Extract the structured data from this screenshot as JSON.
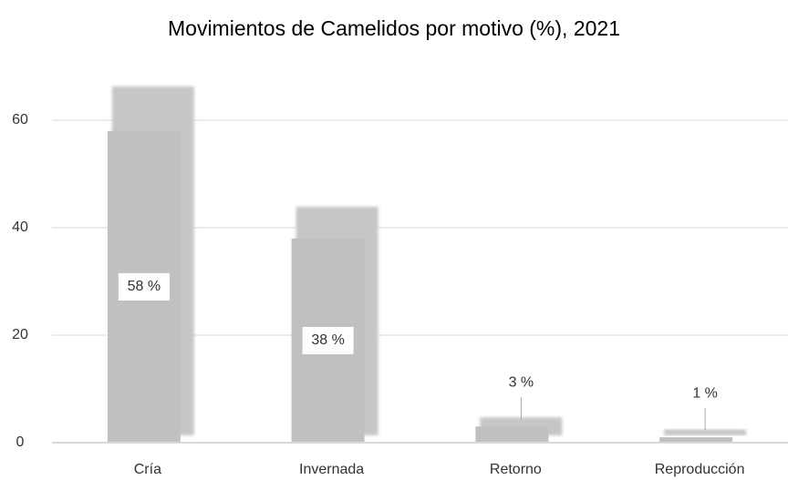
{
  "chart_data": {
    "type": "bar",
    "title": "Movimientos de Camelidos por motivo (%), 2021",
    "categories": [
      "Cría",
      "Invernada",
      "Retorno",
      "Reproducción"
    ],
    "values": [
      58,
      38,
      3,
      1
    ],
    "value_labels": [
      "58 %",
      "38 %",
      "3 %",
      "1 %"
    ],
    "color": "#c0c0c0",
    "ylim": [
      0,
      70
    ],
    "yticks": [
      0,
      20,
      40,
      60
    ],
    "grid": true
  }
}
